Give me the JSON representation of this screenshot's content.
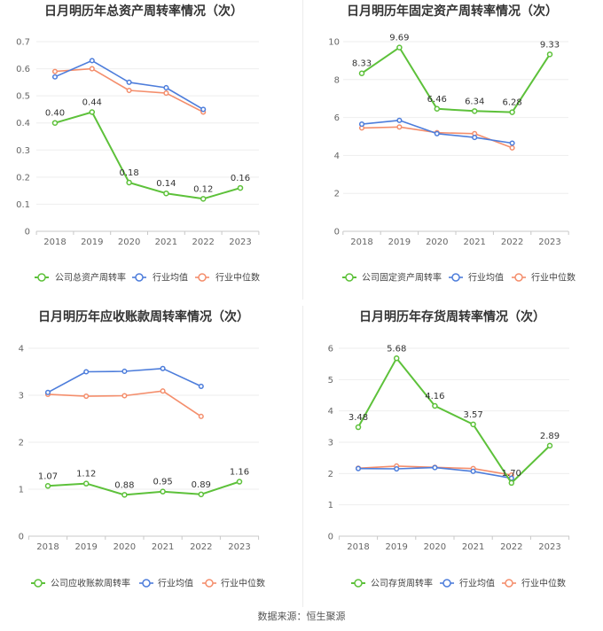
{
  "source_note": "数据来源：恒生聚源",
  "chart_data": [
    {
      "type": "line",
      "title": "日月明历年总资产周转率情况（次）",
      "categories": [
        "2018",
        "2019",
        "2020",
        "2021",
        "2022",
        "2023"
      ],
      "ylim": [
        0,
        0.7
      ],
      "yticks": [
        0,
        0.1,
        0.2,
        0.3,
        0.4,
        0.5,
        0.6,
        0.7
      ],
      "grid": true,
      "legend": "bottom",
      "series": [
        {
          "name": "公司总资产周转率",
          "color": "#5dc13a",
          "data_labels": true,
          "values": [
            0.4,
            0.44,
            0.18,
            0.14,
            0.12,
            0.16
          ]
        },
        {
          "name": "行业均值",
          "color": "#4d7ddb",
          "data_labels": false,
          "values": [
            0.57,
            0.63,
            0.55,
            0.53,
            0.45,
            null
          ]
        },
        {
          "name": "行业中位数",
          "color": "#f48e6c",
          "data_labels": false,
          "values": [
            0.59,
            0.6,
            0.52,
            0.51,
            0.44,
            null
          ]
        }
      ]
    },
    {
      "type": "line",
      "title": "日月明历年固定资产周转率情况（次）",
      "categories": [
        "2018",
        "2019",
        "2020",
        "2021",
        "2022",
        "2023"
      ],
      "ylim": [
        0,
        10
      ],
      "yticks": [
        0,
        2,
        4,
        6,
        8,
        10
      ],
      "grid": true,
      "legend": "bottom",
      "series": [
        {
          "name": "公司固定资产周转率",
          "color": "#5dc13a",
          "data_labels": true,
          "values": [
            8.33,
            9.69,
            6.46,
            6.34,
            6.28,
            9.33
          ]
        },
        {
          "name": "行业均值",
          "color": "#4d7ddb",
          "data_labels": false,
          "values": [
            5.65,
            5.85,
            5.15,
            4.95,
            4.65,
            null
          ]
        },
        {
          "name": "行业中位数",
          "color": "#f48e6c",
          "data_labels": false,
          "values": [
            5.45,
            5.5,
            5.2,
            5.15,
            4.4,
            null
          ]
        }
      ]
    },
    {
      "type": "line",
      "title": "日月明历年应收账款周转率情况（次）",
      "categories": [
        "2018",
        "2019",
        "2020",
        "2021",
        "2022",
        "2023"
      ],
      "ylim": [
        0,
        4
      ],
      "yticks": [
        0,
        1,
        2,
        3,
        4
      ],
      "grid": true,
      "legend": "bottom",
      "series": [
        {
          "name": "公司应收账款周转率",
          "color": "#5dc13a",
          "data_labels": true,
          "values": [
            1.07,
            1.12,
            0.88,
            0.95,
            0.89,
            1.16
          ]
        },
        {
          "name": "行业均值",
          "color": "#4d7ddb",
          "data_labels": false,
          "values": [
            3.06,
            3.5,
            3.51,
            3.57,
            3.19,
            null
          ]
        },
        {
          "name": "行业中位数",
          "color": "#f48e6c",
          "data_labels": false,
          "values": [
            3.02,
            2.98,
            2.99,
            3.09,
            2.55,
            null
          ]
        }
      ]
    },
    {
      "type": "line",
      "title": "日月明历年存货周转率情况（次）",
      "categories": [
        "2018",
        "2019",
        "2020",
        "2021",
        "2022",
        "2023"
      ],
      "ylim": [
        0,
        6
      ],
      "yticks": [
        0,
        1,
        2,
        3,
        4,
        5,
        6
      ],
      "grid": true,
      "legend": "bottom",
      "series": [
        {
          "name": "公司存货周转率",
          "color": "#5dc13a",
          "data_labels": true,
          "values": [
            3.48,
            5.68,
            4.16,
            3.57,
            1.7,
            2.89
          ]
        },
        {
          "name": "行业均值",
          "color": "#4d7ddb",
          "data_labels": false,
          "values": [
            2.16,
            2.15,
            2.19,
            2.07,
            1.85,
            null
          ]
        },
        {
          "name": "行业中位数",
          "color": "#f48e6c",
          "data_labels": false,
          "values": [
            2.17,
            2.24,
            2.2,
            2.16,
            1.95,
            null
          ]
        }
      ]
    }
  ]
}
